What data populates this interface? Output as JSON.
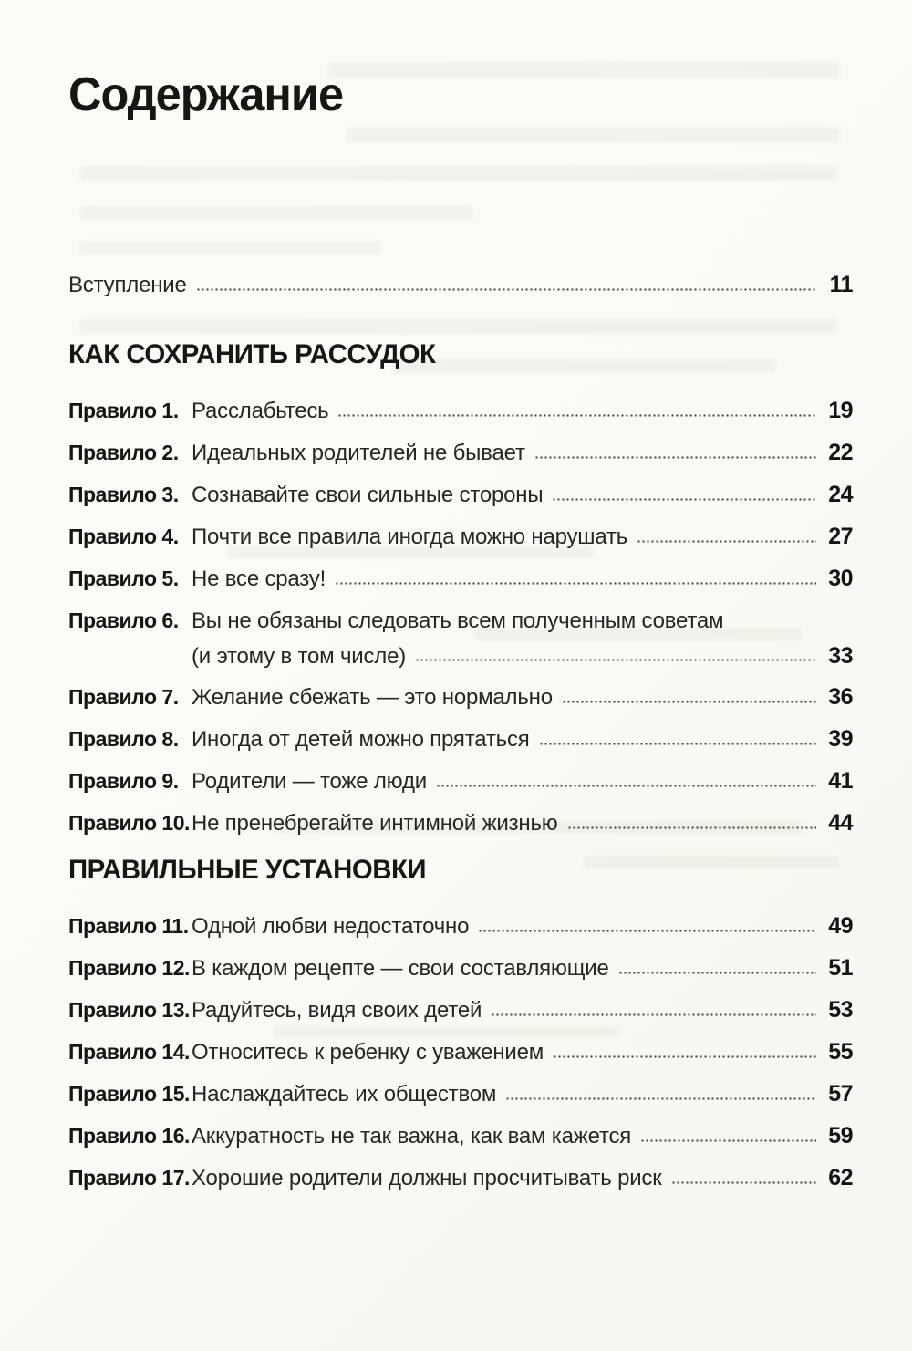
{
  "toc": {
    "title": "Содержание",
    "intro": {
      "label": "Вступление",
      "page": "11"
    },
    "sections": [
      {
        "heading": "КАК СОХРАНИТЬ РАССУДОК",
        "entries": [
          {
            "label": "Правило 1.",
            "title": "Расслабьтесь",
            "page": "19"
          },
          {
            "label": "Правило 2.",
            "title": "Идеальных родителей не бывает",
            "page": "22"
          },
          {
            "label": "Правило 3.",
            "title": "Сознавайте свои сильные стороны",
            "page": "24"
          },
          {
            "label": "Правило 4.",
            "title": "Почти все правила иногда можно нарушать",
            "page": "27"
          },
          {
            "label": "Правило 5.",
            "title": "Не все сразу!",
            "page": "30"
          },
          {
            "label": "Правило 6.",
            "title": "Вы не обязаны следовать всем полученным советам",
            "title2": "(и этому в том числе)",
            "page": "33"
          },
          {
            "label": "Правило 7.",
            "title": "Желание сбежать — это нормально",
            "page": "36"
          },
          {
            "label": "Правило 8.",
            "title": "Иногда от детей можно прятаться",
            "page": "39"
          },
          {
            "label": "Правило 9.",
            "title": "Родители — тоже люди",
            "page": "41"
          },
          {
            "label": "Правило 10.",
            "title": "Не пренебрегайте интимной жизнью",
            "page": "44"
          }
        ]
      },
      {
        "heading": "ПРАВИЛЬНЫЕ УСТАНОВКИ",
        "entries": [
          {
            "label": "Правило 11.",
            "title": "Одной любви недостаточно",
            "page": "49"
          },
          {
            "label": "Правило 12.",
            "title": "В каждом рецепте — свои составляющие",
            "page": "51"
          },
          {
            "label": "Правило 13.",
            "title": "Радуйтесь, видя своих детей",
            "page": "53"
          },
          {
            "label": "Правило 14.",
            "title": "Относитесь к ребенку с уважением",
            "page": "55"
          },
          {
            "label": "Правило 15.",
            "title": "Наслаждайтесь их обществом",
            "page": "57"
          },
          {
            "label": "Правило 16.",
            "title": "Аккуратность не так важна, как вам кажется",
            "page": "59"
          },
          {
            "label": "Правило 17.",
            "title": "Хорошие родители должны просчитывать риск",
            "page": "62"
          }
        ]
      }
    ]
  },
  "colors": {
    "paper": "#fafaf7",
    "text": "#1d1d1b",
    "dots": "#4c4c4a"
  }
}
